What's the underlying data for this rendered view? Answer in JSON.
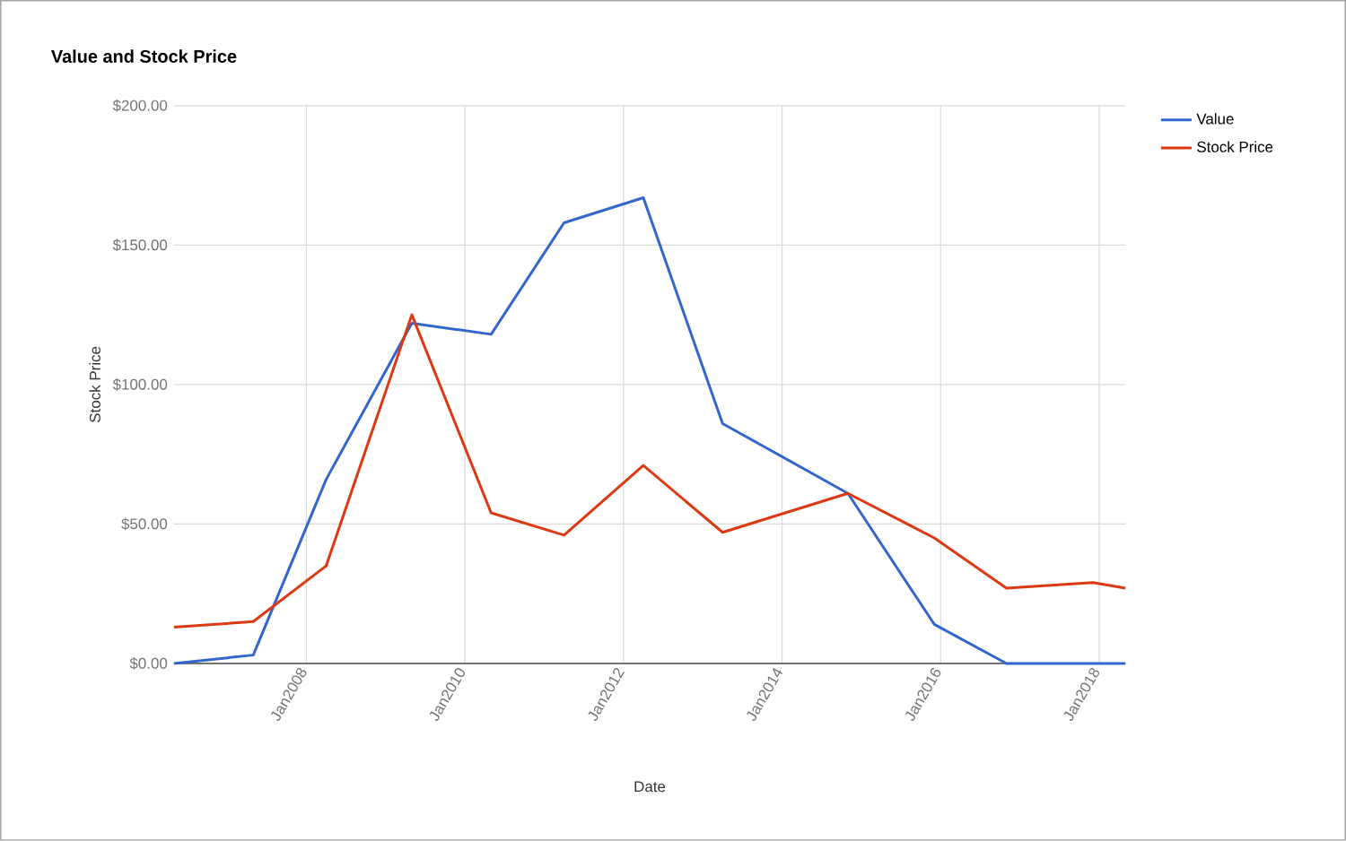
{
  "chart_data": {
    "type": "line",
    "title": "Value and Stock Price",
    "xlabel": "Date",
    "ylabel": "Stock Price",
    "x": [
      "2006-05",
      "2007-05",
      "2008-04",
      "2009-05",
      "2010-05",
      "2011-04",
      "2012-04",
      "2013-04",
      "2014-11",
      "2015-12",
      "2016-11",
      "2017-12",
      "2018-05"
    ],
    "series": [
      {
        "name": "Value",
        "color": "#3366cc",
        "values": [
          0,
          3,
          66,
          122,
          118,
          158,
          167,
          86,
          61,
          14,
          0,
          0,
          0
        ]
      },
      {
        "name": "Stock Price",
        "color": "#dc3912",
        "values": [
          13,
          15,
          35,
          125,
          54,
          46,
          71,
          47,
          61,
          45,
          27,
          29,
          27
        ]
      }
    ],
    "xlim": [
      "2006-05",
      "2018-05"
    ],
    "xticks": [
      {
        "value": "2008-01",
        "label": "Jan2008"
      },
      {
        "value": "2010-01",
        "label": "Jan2010"
      },
      {
        "value": "2012-01",
        "label": "Jan2012"
      },
      {
        "value": "2014-01",
        "label": "Jan2014"
      },
      {
        "value": "2016-01",
        "label": "Jan2016"
      },
      {
        "value": "2018-01",
        "label": "Jan2018"
      }
    ],
    "ylim": [
      0,
      200
    ],
    "yticks": [
      {
        "value": 0,
        "label": "$0.00"
      },
      {
        "value": 50,
        "label": "$50.00"
      },
      {
        "value": 100,
        "label": "$100.00"
      },
      {
        "value": 150,
        "label": "$150.00"
      },
      {
        "value": 200,
        "label": "$200.00"
      }
    ],
    "grid": true,
    "legend": "right",
    "marker": "none",
    "line_style": "solid"
  }
}
